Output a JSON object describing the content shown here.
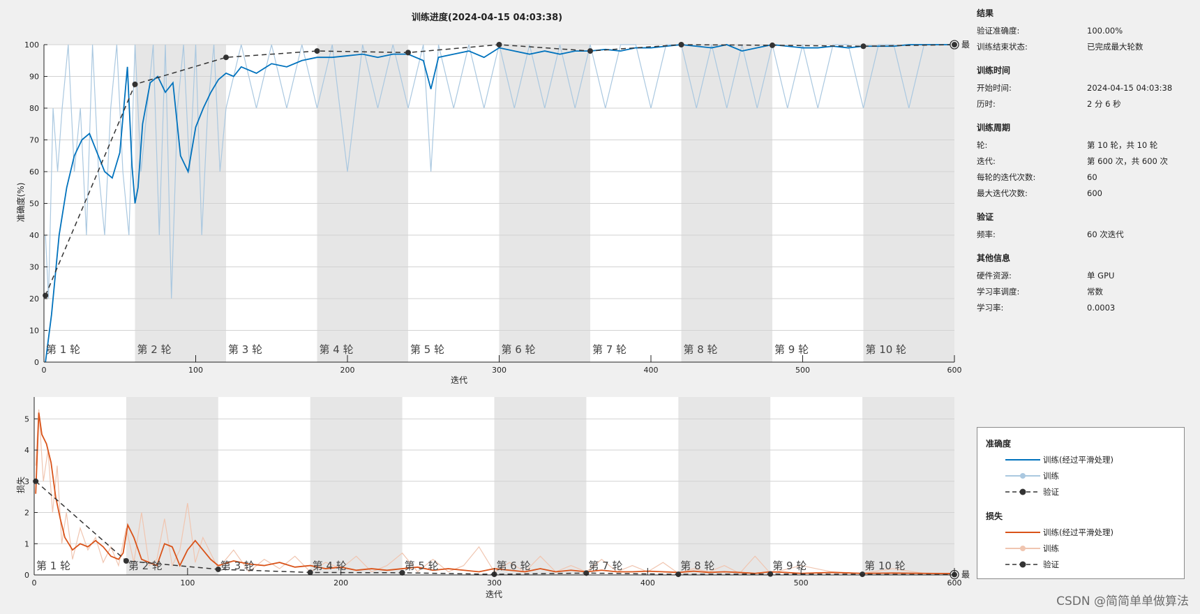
{
  "window": {
    "title": "训练进度(2024-04-15 04:03:38)"
  },
  "colors": {
    "acc_smooth": "#0072bd",
    "acc_raw": "#aac8e0",
    "loss_smooth": "#d95319",
    "loss_raw": "#f0c5b0",
    "validation": "#333333",
    "band": "#e6e6e6"
  },
  "epoch_labels": [
    "第 1 轮",
    "第 2 轮",
    "第 3 轮",
    "第 4 轮",
    "第 5 轮",
    "第 6 轮",
    "第 7 轮",
    "第 8 轮",
    "第 9 轮",
    "第 10 轮"
  ],
  "final_label": "最终",
  "info": {
    "results": {
      "heading": "结果",
      "rows": [
        {
          "key": "验证准确度:",
          "value": "100.00%"
        },
        {
          "key": "训练结束状态:",
          "value": "已完成最大轮数"
        }
      ]
    },
    "time": {
      "heading": "训练时间",
      "rows": [
        {
          "key": "开始时间:",
          "value": "2024-04-15 04:03:38"
        },
        {
          "key": "历时:",
          "value": "2 分 6 秒"
        }
      ]
    },
    "cycle": {
      "heading": "训练周期",
      "rows": [
        {
          "key": "轮:",
          "value": "第 10 轮，共 10 轮"
        },
        {
          "key": "迭代:",
          "value": "第 600 次，共 600 次"
        },
        {
          "key": "每轮的迭代次数:",
          "value": "60"
        },
        {
          "key": "最大迭代次数:",
          "value": "600"
        }
      ]
    },
    "validation": {
      "heading": "验证",
      "rows": [
        {
          "key": "频率:",
          "value": "60 次迭代"
        }
      ]
    },
    "other": {
      "heading": "其他信息",
      "rows": [
        {
          "key": "硬件资源:",
          "value": "单 GPU"
        },
        {
          "key": "学习率调度:",
          "value": "常数"
        },
        {
          "key": "学习率:",
          "value": "0.0003"
        }
      ]
    }
  },
  "legend": {
    "accuracy_title": "准确度",
    "loss_title": "损失",
    "smoothed": "训练(经过平滑处理)",
    "train": "训练",
    "validation": "验证"
  },
  "watermark": "CSDN @简简单单做算法",
  "chart_data": [
    {
      "type": "line",
      "name": "accuracy",
      "title": "训练进度(2024-04-15 04:03:38)",
      "xlabel": "迭代",
      "ylabel": "准确度(%)",
      "xlim": [
        0,
        600
      ],
      "ylim": [
        0,
        100
      ],
      "xticks": [
        0,
        100,
        200,
        300,
        400,
        500,
        600
      ],
      "yticks": [
        0,
        10,
        20,
        30,
        40,
        50,
        60,
        70,
        80,
        90,
        100
      ],
      "grid": "horizontal",
      "validation": {
        "x": [
          1,
          60,
          120,
          180,
          240,
          300,
          360,
          420,
          480,
          540,
          600
        ],
        "y": [
          21,
          87.5,
          96,
          98,
          97.5,
          100,
          98,
          100,
          99.8,
          99.5,
          100
        ]
      },
      "smoothed": {
        "x": [
          1,
          5,
          10,
          15,
          20,
          25,
          30,
          35,
          40,
          45,
          50,
          55,
          58,
          60,
          62,
          65,
          70,
          75,
          80,
          85,
          90,
          95,
          100,
          105,
          110,
          115,
          120,
          125,
          130,
          140,
          150,
          160,
          170,
          180,
          190,
          200,
          210,
          220,
          230,
          240,
          250,
          255,
          260,
          270,
          280,
          290,
          300,
          310,
          320,
          330,
          340,
          350,
          360,
          370,
          380,
          390,
          400,
          410,
          420,
          430,
          440,
          450,
          460,
          470,
          480,
          490,
          500,
          510,
          520,
          530,
          540,
          550,
          560,
          570,
          580,
          590,
          600
        ],
        "y": [
          0,
          15,
          40,
          55,
          65,
          70,
          72,
          66,
          60,
          58,
          66,
          93,
          62,
          50,
          55,
          75,
          88,
          90,
          85,
          88,
          65,
          60,
          74,
          80,
          85,
          89,
          91,
          90,
          93,
          91,
          94,
          93,
          95,
          96,
          96,
          96.5,
          97,
          96,
          97,
          97,
          95,
          86,
          96,
          97,
          98,
          96,
          99,
          98,
          97,
          98,
          97,
          98,
          98,
          98.5,
          98,
          99,
          99,
          99.5,
          100,
          99.5,
          99,
          100,
          98,
          99,
          100,
          99.5,
          99,
          99,
          99.5,
          99,
          99.5,
          99.5,
          99.5,
          100,
          100,
          100,
          100
        ]
      },
      "train": {
        "x": [
          1,
          3,
          6,
          9,
          12,
          16,
          20,
          24,
          28,
          32,
          36,
          40,
          44,
          48,
          52,
          56,
          60,
          64,
          68,
          72,
          76,
          80,
          84,
          88,
          92,
          96,
          100,
          104,
          108,
          112,
          116,
          120,
          130,
          140,
          150,
          160,
          170,
          180,
          190,
          200,
          210,
          220,
          230,
          240,
          250,
          255,
          260,
          270,
          280,
          290,
          300,
          310,
          320,
          330,
          340,
          350,
          360,
          370,
          380,
          390,
          400,
          410,
          420,
          430,
          440,
          450,
          460,
          470,
          480,
          490,
          500,
          510,
          520,
          530,
          540,
          550,
          560,
          570,
          580,
          590,
          600
        ],
        "y": [
          40,
          20,
          80,
          60,
          80,
          100,
          60,
          80,
          40,
          100,
          60,
          40,
          80,
          100,
          60,
          40,
          100,
          60,
          80,
          100,
          40,
          100,
          20,
          80,
          100,
          60,
          100,
          40,
          80,
          100,
          60,
          80,
          100,
          80,
          100,
          80,
          100,
          80,
          100,
          60,
          100,
          80,
          100,
          80,
          100,
          60,
          100,
          80,
          100,
          80,
          100,
          80,
          100,
          80,
          100,
          80,
          100,
          80,
          100,
          100,
          80,
          100,
          100,
          80,
          100,
          80,
          100,
          80,
          100,
          80,
          100,
          80,
          100,
          100,
          80,
          100,
          100,
          80,
          100,
          100,
          100
        ]
      }
    },
    {
      "type": "line",
      "name": "loss",
      "xlabel": "迭代",
      "ylabel": "损失",
      "xlim": [
        0,
        600
      ],
      "ylim": [
        0,
        5.7
      ],
      "xticks": [
        0,
        100,
        200,
        300,
        400,
        500,
        600
      ],
      "yticks": [
        0,
        1,
        2,
        3,
        4,
        5
      ],
      "grid": "horizontal",
      "validation": {
        "x": [
          1,
          60,
          120,
          180,
          240,
          300,
          360,
          420,
          480,
          540,
          600
        ],
        "y": [
          3,
          0.45,
          0.18,
          0.08,
          0.07,
          0.02,
          0.06,
          0.02,
          0.03,
          0.02,
          0.01
        ]
      },
      "smoothed": {
        "x": [
          1,
          3,
          5,
          8,
          11,
          14,
          17,
          20,
          25,
          30,
          35,
          40,
          45,
          50,
          55,
          58,
          61,
          65,
          70,
          75,
          80,
          85,
          90,
          95,
          100,
          105,
          110,
          115,
          120,
          130,
          140,
          150,
          160,
          170,
          180,
          190,
          200,
          210,
          220,
          230,
          240,
          250,
          260,
          270,
          280,
          290,
          300,
          310,
          320,
          330,
          340,
          350,
          360,
          370,
          380,
          390,
          400,
          410,
          420,
          430,
          440,
          450,
          460,
          470,
          480,
          490,
          500,
          520,
          540,
          560,
          580,
          600
        ],
        "y": [
          2.6,
          5.2,
          4.5,
          4.2,
          3.6,
          2.5,
          1.8,
          1.2,
          0.8,
          1.0,
          0.9,
          1.1,
          0.9,
          0.6,
          0.5,
          0.7,
          1.6,
          1.2,
          0.5,
          0.4,
          0.3,
          1.0,
          0.9,
          0.3,
          0.8,
          1.1,
          0.8,
          0.5,
          0.3,
          0.45,
          0.35,
          0.3,
          0.4,
          0.25,
          0.3,
          0.2,
          0.25,
          0.15,
          0.2,
          0.15,
          0.2,
          0.25,
          0.15,
          0.2,
          0.15,
          0.1,
          0.2,
          0.15,
          0.1,
          0.2,
          0.1,
          0.15,
          0.1,
          0.15,
          0.1,
          0.1,
          0.12,
          0.1,
          0.08,
          0.12,
          0.08,
          0.1,
          0.08,
          0.05,
          0.1,
          0.08,
          0.05,
          0.08,
          0.05,
          0.06,
          0.05,
          0.04
        ]
      },
      "train": {
        "x": [
          1,
          3,
          6,
          9,
          12,
          15,
          18,
          21,
          25,
          30,
          35,
          40,
          45,
          50,
          55,
          60,
          65,
          70,
          75,
          80,
          85,
          90,
          95,
          100,
          105,
          110,
          120,
          130,
          140,
          150,
          160,
          170,
          180,
          190,
          200,
          210,
          220,
          230,
          240,
          250,
          260,
          270,
          280,
          290,
          300,
          310,
          320,
          330,
          340,
          350,
          360,
          370,
          380,
          390,
          400,
          410,
          420,
          430,
          440,
          450,
          460,
          470,
          480,
          500,
          520,
          540,
          560,
          580,
          600
        ],
        "y": [
          3.5,
          5.3,
          3.0,
          4.0,
          2.0,
          3.5,
          1.0,
          2.0,
          0.5,
          1.5,
          0.8,
          1.2,
          0.4,
          0.9,
          0.3,
          1.5,
          0.4,
          2.0,
          0.3,
          0.5,
          1.8,
          0.3,
          0.8,
          2.3,
          0.4,
          1.2,
          0.2,
          0.8,
          0.1,
          0.5,
          0.2,
          0.6,
          0.1,
          0.4,
          0.2,
          0.6,
          0.1,
          0.3,
          0.7,
          0.1,
          0.5,
          0.1,
          0.3,
          0.9,
          0.1,
          0.4,
          0.1,
          0.6,
          0.1,
          0.3,
          0.1,
          0.5,
          0.1,
          0.3,
          0.1,
          0.4,
          0.05,
          0.2,
          0.1,
          0.3,
          0.05,
          0.6,
          0.05,
          0.3,
          0.1,
          0.05,
          0.2,
          0.05,
          0.05
        ]
      }
    }
  ]
}
